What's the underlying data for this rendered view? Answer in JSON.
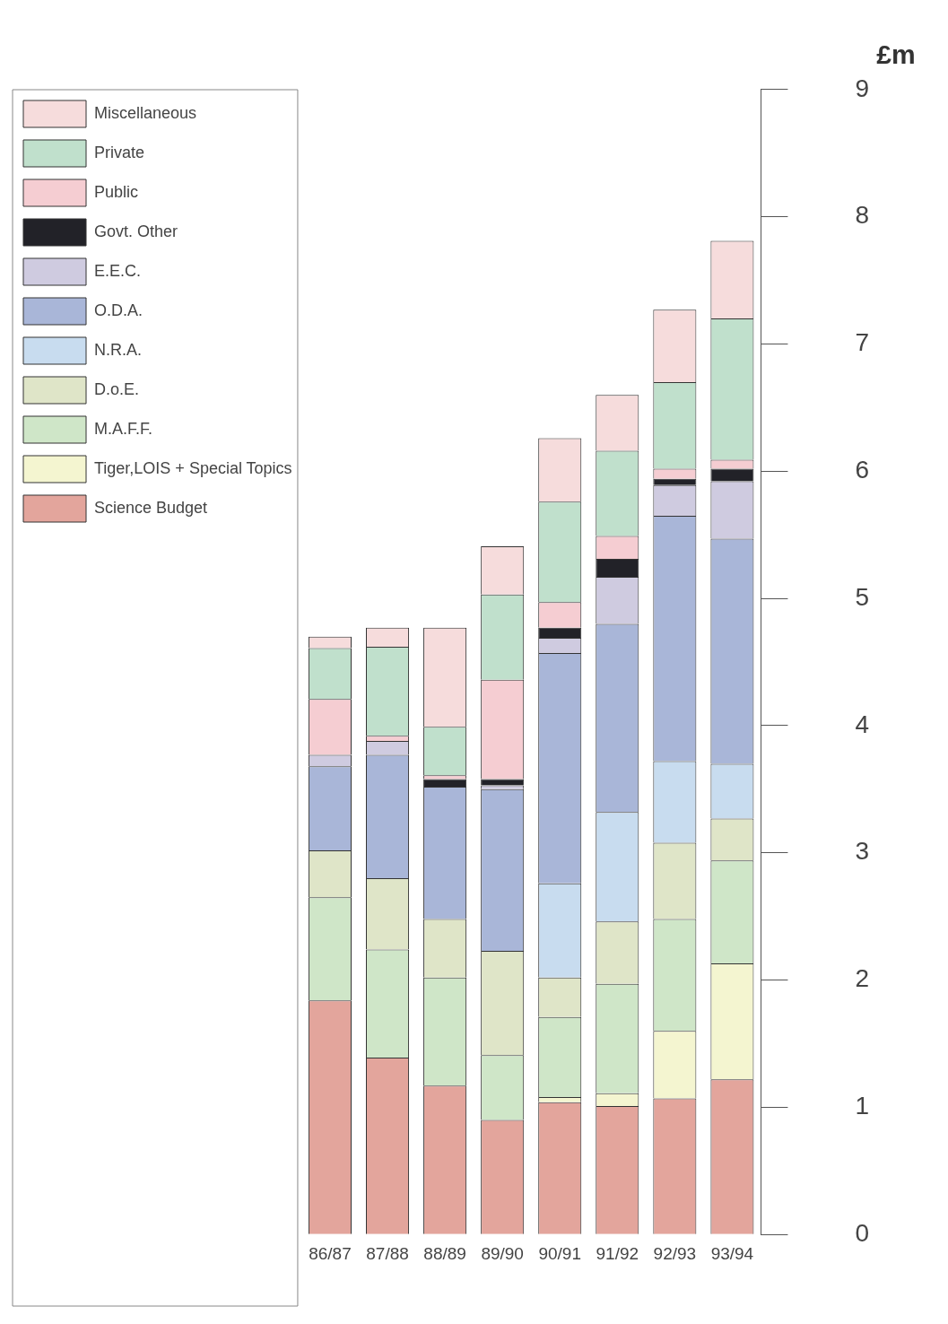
{
  "chart_data": {
    "type": "bar",
    "stacked": true,
    "ylabel": "£m",
    "categories": [
      "86/87",
      "87/88",
      "88/89",
      "89/90",
      "90/91",
      "91/92",
      "92/93",
      "93/94"
    ],
    "series": [
      {
        "name": "Science Budget",
        "color": "#e3a59c",
        "values": [
          1.84,
          1.39,
          1.17,
          0.9,
          1.04,
          1.01,
          1.07,
          1.22
        ]
      },
      {
        "name": "Tiger,LOIS + Special Topics",
        "color": "#f4f5d0",
        "values": [
          0,
          0,
          0,
          0,
          0.04,
          0.1,
          0.53,
          0.91
        ]
      },
      {
        "name": "M.A.F.F.",
        "color": "#cfe6c8",
        "values": [
          0.81,
          0.85,
          0.85,
          0.51,
          0.63,
          0.86,
          0.88,
          0.81
        ]
      },
      {
        "name": "D.o.E.",
        "color": "#dfe5c8",
        "values": [
          0.37,
          0.56,
          0.46,
          0.82,
          0.31,
          0.49,
          0.6,
          0.33
        ]
      },
      {
        "name": "N.R.A.",
        "color": "#c8dcef",
        "values": [
          0,
          0,
          0,
          0,
          0.74,
          0.86,
          0.64,
          0.43
        ]
      },
      {
        "name": "O.D.A.",
        "color": "#a9b6d8",
        "values": [
          0.66,
          0.97,
          1.04,
          1.27,
          1.81,
          1.48,
          1.93,
          1.77
        ]
      },
      {
        "name": "E.E.C.",
        "color": "#cfcbe0",
        "values": [
          0.09,
          0.11,
          0,
          0.03,
          0.12,
          0.37,
          0.24,
          0.45
        ]
      },
      {
        "name": "Govt. Other",
        "color": "#222228",
        "values": [
          0,
          0,
          0.06,
          0.05,
          0.08,
          0.14,
          0.05,
          0.1
        ]
      },
      {
        "name": "Public",
        "color": "#f5cdd2",
        "values": [
          0.44,
          0.04,
          0.03,
          0.78,
          0.2,
          0.18,
          0.08,
          0.07
        ]
      },
      {
        "name": "Private",
        "color": "#c0e0cc",
        "values": [
          0.4,
          0.7,
          0.38,
          0.67,
          0.79,
          0.67,
          0.68,
          1.11
        ]
      },
      {
        "name": "Miscellaneous",
        "color": "#f6dcdc",
        "values": [
          0.09,
          0.15,
          0.78,
          0.38,
          0.5,
          0.44,
          0.57,
          0.61
        ]
      }
    ],
    "ylim": [
      0,
      9
    ],
    "yticks": [
      0,
      1,
      2,
      3,
      4,
      5,
      6,
      7,
      8,
      9
    ],
    "grid": false,
    "legend": "top left"
  }
}
